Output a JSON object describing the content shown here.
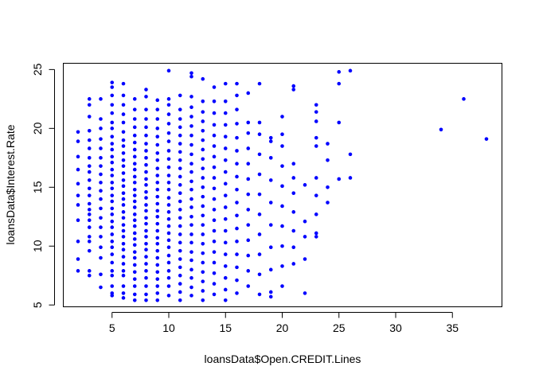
{
  "chart_data": {
    "type": "scatter",
    "title": "",
    "xlabel": "loansData$Open.CREDIT.Lines",
    "ylabel": "loansData$Interest.Rate",
    "xlim": [
      2,
      38
    ],
    "ylim": [
      5.42,
      24.89
    ],
    "x_ticks": [
      5,
      10,
      15,
      20,
      25,
      30,
      35
    ],
    "y_ticks": [
      5,
      10,
      15,
      20,
      25
    ],
    "grid": false,
    "legend": "none",
    "colors": {
      "point": "#0000ff",
      "axis": "#000000",
      "background": "#ffffff"
    },
    "columns": [
      {
        "x": 2,
        "y": [
          7.9,
          8.9,
          10.4,
          12.2,
          13.5,
          14.3,
          15.3,
          16.5,
          17.6,
          18.9,
          19.7
        ]
      },
      {
        "x": 3,
        "y": [
          7.5,
          7.9,
          9.6,
          10.4,
          10.8,
          11.6,
          12.2,
          12.7,
          13.1,
          13.6,
          14.3,
          14.9,
          15.6,
          16.3,
          16.8,
          17.5,
          18.3,
          19.0,
          19.8,
          21.0,
          22.0,
          22.5
        ]
      },
      {
        "x": 4,
        "y": [
          6.5,
          7.6,
          9.0,
          9.9,
          10.8,
          11.6,
          12.4,
          13.2,
          14.0,
          14.7,
          15.4,
          16.1,
          16.8,
          17.5,
          18.3,
          19.1,
          20.0,
          20.8,
          22.5
        ]
      },
      {
        "x": 5,
        "y": [
          5.8,
          6.0,
          6.6,
          7.5,
          7.9,
          8.6,
          9.3,
          9.9,
          10.4,
          11.0,
          11.6,
          12.1,
          12.7,
          13.2,
          13.8,
          14.3,
          14.9,
          15.4,
          16.0,
          16.5,
          17.1,
          17.6,
          18.2,
          18.7,
          19.3,
          20.0,
          20.5,
          21.3,
          22.0,
          22.8,
          23.5,
          23.9
        ]
      },
      {
        "x": 6,
        "y": [
          5.6,
          6.0,
          6.6,
          7.5,
          7.9,
          8.5,
          9.1,
          9.7,
          10.2,
          10.8,
          11.3,
          11.8,
          12.4,
          12.9,
          13.5,
          14.0,
          14.5,
          15.1,
          15.6,
          16.2,
          16.8,
          17.3,
          17.9,
          18.5,
          19.0,
          19.7,
          20.5,
          21.2,
          22.0,
          22.8,
          23.8
        ]
      },
      {
        "x": 7,
        "y": [
          5.4,
          5.9,
          6.6,
          7.2,
          7.8,
          8.4,
          9.0,
          9.5,
          10.1,
          10.6,
          11.1,
          11.7,
          12.2,
          12.7,
          13.3,
          13.8,
          14.3,
          14.8,
          15.4,
          15.9,
          16.5,
          17.0,
          17.6,
          18.2,
          18.8,
          19.4,
          20.1,
          20.8,
          21.6,
          22.5
        ]
      },
      {
        "x": 8,
        "y": [
          5.4,
          5.9,
          6.6,
          7.3,
          7.9,
          8.5,
          9.1,
          9.7,
          10.2,
          10.8,
          11.3,
          11.9,
          12.4,
          13.0,
          13.5,
          14.1,
          14.6,
          15.2,
          15.7,
          16.3,
          16.9,
          17.5,
          18.1,
          18.7,
          19.4,
          20.1,
          20.8,
          21.6,
          22.7,
          23.3
        ]
      },
      {
        "x": 9,
        "y": [
          5.4,
          6.0,
          6.6,
          7.2,
          7.8,
          8.4,
          9.0,
          9.6,
          10.2,
          10.7,
          11.3,
          11.9,
          12.5,
          13.0,
          13.6,
          14.2,
          14.8,
          15.4,
          16.0,
          16.6,
          17.3,
          17.9,
          18.6,
          19.3,
          20.0,
          20.8,
          21.6,
          22.4
        ]
      },
      {
        "x": 10,
        "y": [
          5.8,
          6.6,
          7.3,
          7.9,
          8.6,
          9.2,
          9.9,
          10.5,
          11.1,
          11.7,
          12.3,
          12.9,
          13.5,
          14.1,
          14.8,
          15.4,
          16.0,
          16.7,
          17.4,
          18.1,
          18.9,
          19.6,
          20.4,
          21.2,
          22.0,
          22.5,
          24.9
        ]
      },
      {
        "x": 11,
        "y": [
          5.4,
          6.1,
          6.8,
          7.5,
          8.2,
          8.9,
          9.6,
          10.3,
          11.0,
          11.7,
          12.4,
          13.1,
          13.8,
          14.5,
          15.2,
          15.9,
          16.6,
          17.3,
          18.0,
          18.7,
          19.4,
          20.1,
          20.8,
          21.6,
          22.8
        ]
      },
      {
        "x": 12,
        "y": [
          5.8,
          6.5,
          7.3,
          8.0,
          8.8,
          9.5,
          10.3,
          11.0,
          11.8,
          12.5,
          13.3,
          14.0,
          14.8,
          15.5,
          16.3,
          17.0,
          17.8,
          18.6,
          19.4,
          20.2,
          21.0,
          21.8,
          22.7,
          24.4,
          24.7
        ]
      },
      {
        "x": 13,
        "y": [
          5.4,
          6.2,
          7.0,
          7.8,
          8.6,
          9.4,
          10.2,
          11.0,
          11.8,
          12.6,
          13.4,
          14.2,
          15.0,
          15.8,
          16.6,
          17.4,
          18.2,
          19.0,
          19.8,
          20.6,
          21.4,
          22.3,
          24.2
        ]
      },
      {
        "x": 14,
        "y": [
          5.9,
          6.8,
          7.7,
          8.6,
          9.5,
          10.4,
          11.3,
          12.2,
          13.1,
          14.0,
          14.9,
          15.8,
          16.7,
          17.6,
          18.5,
          19.4,
          20.3,
          21.3,
          22.3,
          23.5
        ]
      },
      {
        "x": 15,
        "y": [
          5.4,
          6.3,
          7.3,
          8.3,
          9.3,
          10.3,
          11.3,
          12.3,
          13.3,
          14.3,
          15.3,
          16.3,
          17.3,
          18.3,
          19.3,
          20.3,
          21.3,
          22.3,
          23.8
        ]
      },
      {
        "x": 16,
        "y": [
          6.0,
          7.1,
          8.2,
          9.3,
          10.4,
          11.5,
          12.6,
          13.7,
          14.8,
          15.9,
          17.0,
          18.1,
          19.2,
          20.4,
          21.6,
          22.8,
          23.8
        ]
      },
      {
        "x": 17,
        "y": [
          6.6,
          7.9,
          9.2,
          10.5,
          11.8,
          13.1,
          14.4,
          15.7,
          17.0,
          18.3,
          19.6,
          20.5,
          23.0
        ]
      },
      {
        "x": 18,
        "y": [
          5.9,
          7.6,
          9.3,
          11.0,
          12.7,
          14.4,
          16.1,
          17.8,
          19.5,
          20.5,
          23.8
        ]
      },
      {
        "x": 19,
        "y": [
          5.7,
          6.1,
          8.0,
          9.9,
          11.8,
          13.7,
          15.6,
          17.5,
          18.9,
          19.2
        ]
      },
      {
        "x": 20,
        "y": [
          6.6,
          8.3,
          10.0,
          11.7,
          13.4,
          15.1,
          16.8,
          18.5,
          19.5,
          21.0
        ]
      },
      {
        "x": 21,
        "y": [
          8.5,
          9.9,
          11.3,
          12.9,
          14.5,
          15.8,
          17.0,
          23.3,
          23.6
        ]
      },
      {
        "x": 22,
        "y": [
          6.0,
          8.9,
          10.8,
          12.1,
          15.2
        ]
      },
      {
        "x": 23,
        "y": [
          10.8,
          11.1,
          12.7,
          14.3,
          15.8,
          18.5,
          19.2,
          20.6,
          21.4,
          22.0
        ]
      },
      {
        "x": 24,
        "y": [
          13.7,
          15.0,
          17.3,
          18.7
        ]
      },
      {
        "x": 25,
        "y": [
          15.7,
          20.5,
          23.8,
          24.8
        ]
      },
      {
        "x": 26,
        "y": [
          15.8,
          17.8,
          24.9
        ]
      },
      {
        "x": 34,
        "y": [
          19.9
        ]
      },
      {
        "x": 36,
        "y": [
          22.5
        ]
      },
      {
        "x": 38,
        "y": [
          19.1
        ]
      }
    ]
  }
}
